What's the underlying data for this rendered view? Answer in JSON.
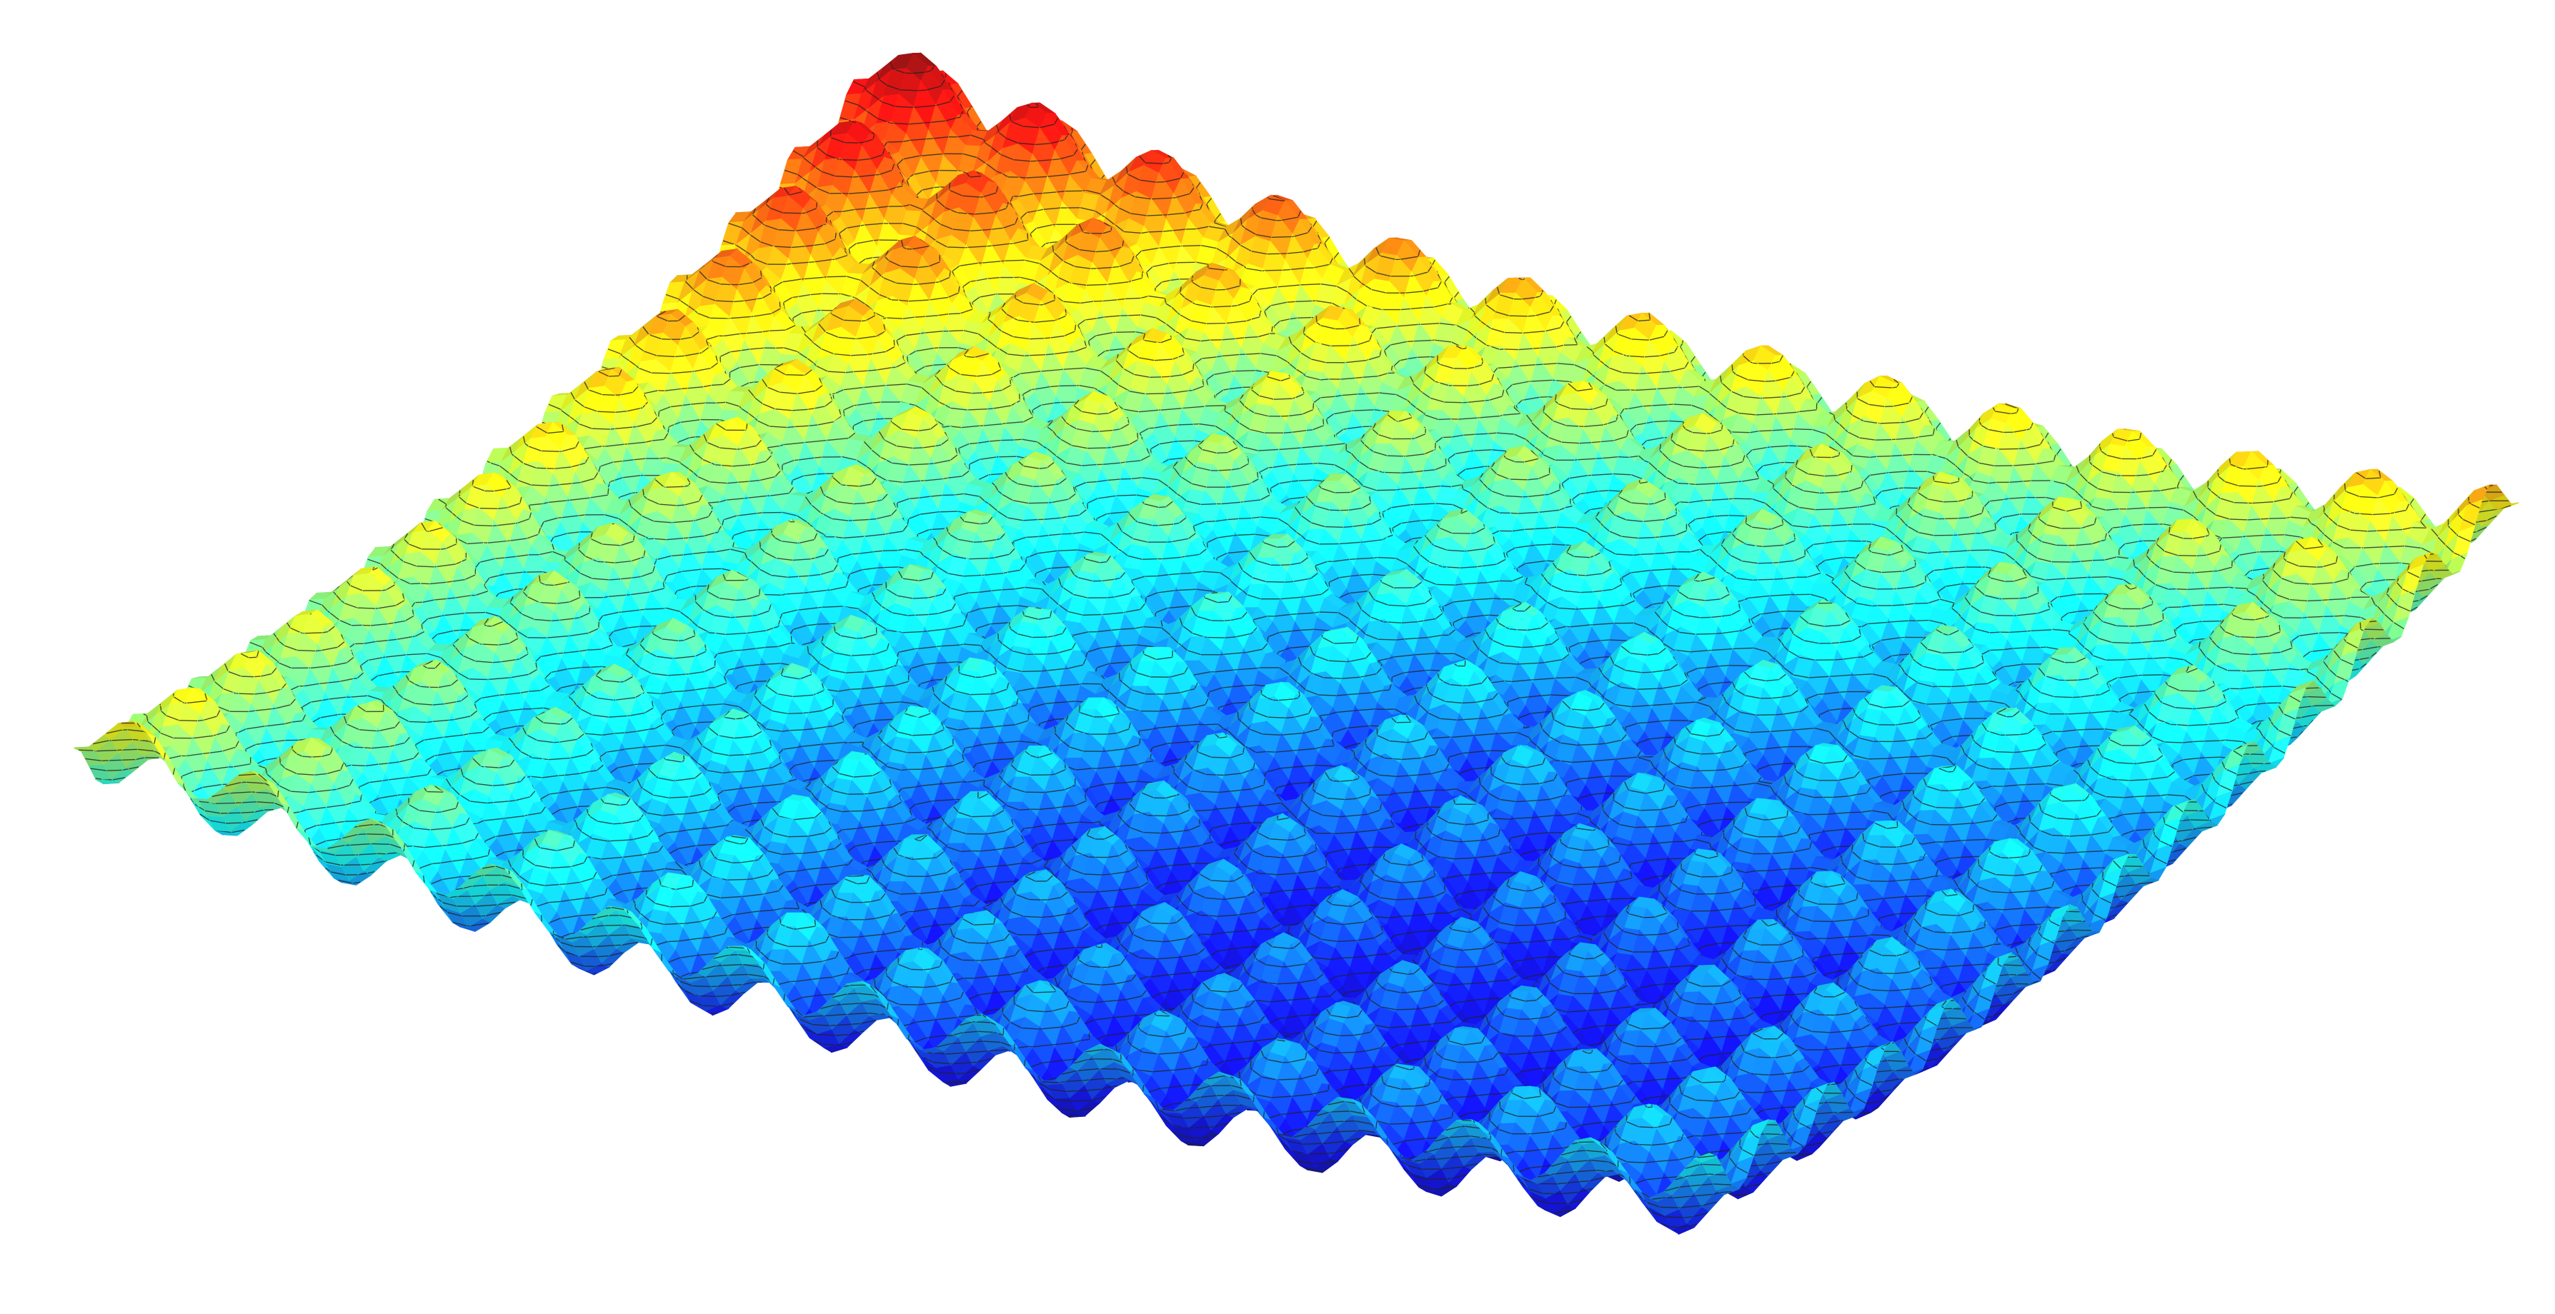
{
  "chart_data": {
    "type": "surface",
    "colormap": "jet",
    "contours": true
  }
}
